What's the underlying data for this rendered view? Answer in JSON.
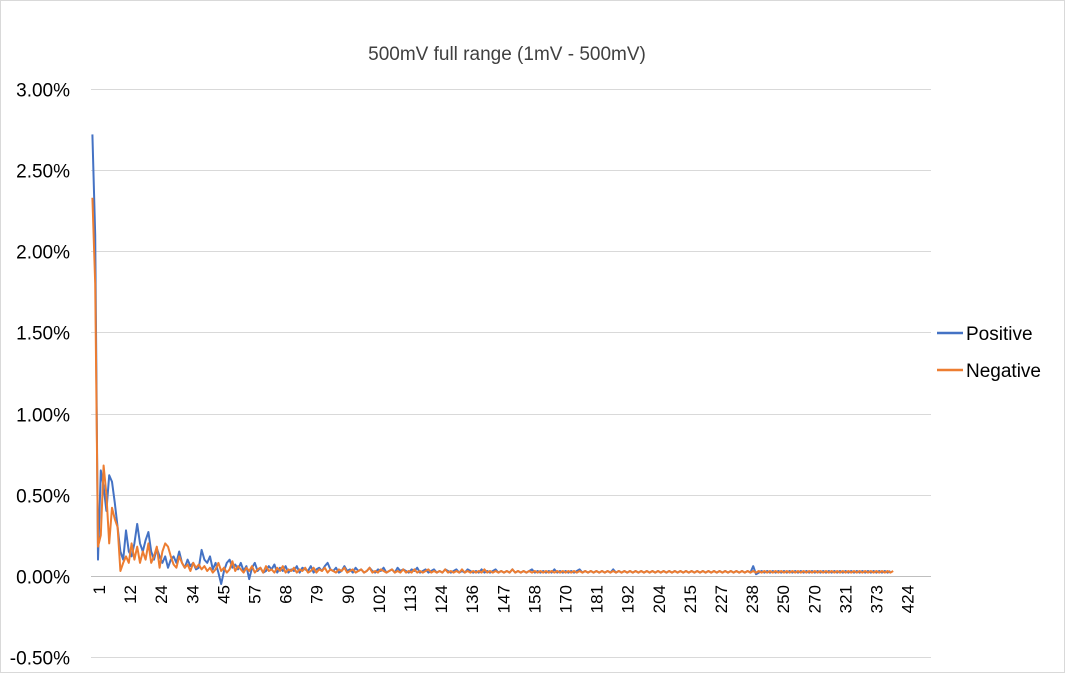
{
  "chart_data": {
    "type": "line",
    "title": "500mV full range (1mV - 500mV)",
    "xlabel": "",
    "ylabel": "",
    "ylim": [
      -0.005,
      0.03
    ],
    "y_ticks": [
      "-0.50%",
      "0.00%",
      "0.50%",
      "1.00%",
      "1.50%",
      "2.00%",
      "2.50%",
      "3.00%"
    ],
    "y_tick_values": [
      -0.005,
      0,
      0.005,
      0.01,
      0.015,
      0.02,
      0.025,
      0.03
    ],
    "x_tick_labels": [
      "1",
      "12",
      "24",
      "34",
      "45",
      "57",
      "68",
      "79",
      "90",
      "102",
      "113",
      "124",
      "136",
      "147",
      "158",
      "170",
      "181",
      "192",
      "204",
      "215",
      "227",
      "238",
      "250",
      "270",
      "321",
      "373",
      "424"
    ],
    "point_count": 300,
    "grid": true,
    "legend_position": "right",
    "series": [
      {
        "name": "Positive",
        "color": "#4472C4",
        "values": [
          0.0272,
          0.021,
          0.001,
          0.0065,
          0.0055,
          0.004,
          0.0062,
          0.0058,
          0.0045,
          0.003,
          0.0015,
          0.001,
          0.0028,
          0.0015,
          0.0012,
          0.002,
          0.0032,
          0.002,
          0.0015,
          0.0022,
          0.0027,
          0.0015,
          0.001,
          0.0017,
          0.0012,
          0.0008,
          0.0012,
          0.0005,
          0.001,
          0.0012,
          0.0008,
          0.0015,
          0.0008,
          0.0005,
          0.001,
          0.0006,
          0.0008,
          0.0004,
          0.0005,
          0.0016,
          0.001,
          0.0008,
          0.0012,
          0.0004,
          0.0008,
          0.0002,
          -0.0005,
          0.0003,
          0.0008,
          0.001,
          0.0005,
          0.0007,
          0.0004,
          0.0008,
          0.0003,
          0.0006,
          -0.0002,
          0.0005,
          0.0008,
          0.0003,
          0.0005,
          0.0002,
          0.0003,
          0.0006,
          0.0004,
          0.0007,
          0.0002,
          0.0005,
          0.0003,
          0.0006,
          0.0002,
          0.0004,
          0.0003,
          0.0006,
          0.0002,
          0.0005,
          0.0004,
          0.0003,
          0.0006,
          0.0002,
          0.0004,
          0.0005,
          0.0003,
          0.0006,
          0.0008,
          0.0004,
          0.0003,
          0.0005,
          0.0002,
          0.0003,
          0.0006,
          0.0003,
          0.0004,
          0.0002,
          0.0005,
          0.0003,
          0.0004,
          0.0002,
          0.0003,
          0.0005,
          0.0003,
          0.0002,
          0.0004,
          0.0003,
          0.0005,
          0.0002,
          0.0003,
          0.0004,
          0.0002,
          0.0005,
          0.0003,
          0.0004,
          0.0003,
          0.0002,
          0.0004,
          0.0003,
          0.0005,
          0.0002,
          0.0003,
          0.0004,
          0.0002,
          0.0003,
          0.0004,
          0.0002,
          0.0003,
          0.0002,
          0.0004,
          0.0003,
          0.0002,
          0.0003,
          0.0004,
          0.0002,
          0.0003,
          0.0002,
          0.0004,
          0.0003,
          0.0002,
          0.0003,
          0.0002,
          0.0004,
          0.0002,
          0.0003,
          0.0002,
          0.0003,
          0.0004,
          0.0002,
          0.0003,
          0.0002,
          0.0003,
          0.0002,
          0.0004,
          0.0002,
          0.0003,
          0.0002,
          0.0003,
          0.0002,
          0.0003,
          0.0004,
          0.0002,
          0.0003,
          0.0002,
          0.0003,
          0.0002,
          0.0003,
          0.0002,
          0.0004,
          0.0002,
          0.0003,
          0.0002,
          0.0003,
          0.0002,
          0.0003,
          0.0002,
          0.0003,
          0.0004,
          0.0002,
          0.0003,
          0.0002,
          0.0003,
          0.0002,
          0.0003,
          0.0002,
          0.0003,
          0.0002,
          0.0003,
          0.0002,
          0.0004,
          0.0002,
          0.0003,
          0.0002,
          0.0003,
          0.0002,
          0.0003,
          0.0002,
          0.0003,
          0.0002,
          0.0003,
          0.0002,
          0.0003,
          0.0002,
          0.0003,
          0.0002,
          0.0003,
          0.0002,
          0.0003,
          0.0002,
          0.0003,
          0.0002,
          0.0003,
          0.0002,
          0.0003,
          0.0002,
          0.0003,
          0.0002,
          0.0003,
          0.0002,
          0.0003,
          0.0002,
          0.0003,
          0.0002,
          0.0003,
          0.0002,
          0.0003,
          0.0002,
          0.0003,
          0.0002,
          0.0003,
          0.0002,
          0.0003,
          0.0002,
          0.0003,
          0.0002,
          0.0003,
          0.0002,
          0.0003,
          0.0002,
          0.0006,
          0.0001,
          0.0002,
          0.0003,
          0.0002,
          0.0003,
          0.0002,
          0.0003,
          0.0002,
          0.0003,
          0.0002,
          0.0003,
          0.0002,
          0.0003,
          0.0002,
          0.0003,
          0.0002,
          0.0003,
          0.0002,
          0.0003,
          0.0002,
          0.0003,
          0.0002,
          0.0003,
          0.0002,
          0.0003,
          0.0002,
          0.0003,
          0.0002,
          0.0003,
          0.0002,
          0.0003,
          0.0002,
          0.0003,
          0.0002,
          0.0003,
          0.0002,
          0.0003,
          0.0002,
          0.0003,
          0.0002,
          0.0003,
          0.0002,
          0.0003,
          0.0002,
          0.0003,
          0.0002,
          0.0003,
          0.0002,
          0.0003
        ]
      },
      {
        "name": "Negative",
        "color": "#ED7D31",
        "values": [
          0.0233,
          0.018,
          0.0018,
          0.0025,
          0.0068,
          0.005,
          0.002,
          0.0042,
          0.0035,
          0.003,
          0.0003,
          0.0008,
          0.0012,
          0.0008,
          0.002,
          0.001,
          0.0018,
          0.0008,
          0.0015,
          0.001,
          0.002,
          0.0008,
          0.0012,
          0.0018,
          0.0005,
          0.0015,
          0.002,
          0.0018,
          0.0012,
          0.0007,
          0.0005,
          0.0012,
          0.0008,
          0.0005,
          0.0007,
          0.0003,
          0.0008,
          0.0005,
          0.0007,
          0.0004,
          0.0006,
          0.0003,
          0.0005,
          0.0002,
          0.0004,
          0.0008,
          0.0003,
          0.0005,
          0.0002,
          0.0004,
          0.0009,
          0.0003,
          0.0006,
          0.0004,
          0.0002,
          0.0005,
          0.0003,
          0.0006,
          0.0002,
          0.0004,
          0.0005,
          0.0002,
          0.0006,
          0.0003,
          0.0004,
          0.0002,
          0.0005,
          0.0003,
          0.0006,
          0.0002,
          0.0004,
          0.0003,
          0.0005,
          0.0002,
          0.0004,
          0.0003,
          0.0005,
          0.0002,
          0.0003,
          0.0005,
          0.0002,
          0.0004,
          0.0003,
          0.0005,
          0.0002,
          0.0004,
          0.0003,
          0.0002,
          0.0004,
          0.0003,
          0.0005,
          0.0002,
          0.0003,
          0.0004,
          0.0002,
          0.0003,
          0.0004,
          0.0002,
          0.0003,
          0.0005,
          0.0002,
          0.0003,
          0.0002,
          0.0004,
          0.0003,
          0.0002,
          0.0003,
          0.0004,
          0.0002,
          0.0003,
          0.0002,
          0.0004,
          0.0002,
          0.0003,
          0.0002,
          0.0004,
          0.0002,
          0.0003,
          0.0002,
          0.0003,
          0.0004,
          0.0002,
          0.0003,
          0.0002,
          0.0003,
          0.0002,
          0.0004,
          0.0002,
          0.0003,
          0.0002,
          0.0003,
          0.0002,
          0.0004,
          0.0002,
          0.0003,
          0.0002,
          0.0003,
          0.0002,
          0.0003,
          0.0002,
          0.0004,
          0.0002,
          0.0003,
          0.0002,
          0.0003,
          0.0002,
          0.0003,
          0.0002,
          0.0003,
          0.0002,
          0.0004,
          0.0002,
          0.0003,
          0.0002,
          0.0003,
          0.0002,
          0.0003,
          0.0002,
          0.0003,
          0.0002,
          0.0003,
          0.0002,
          0.0003,
          0.0002,
          0.0003,
          0.0002,
          0.0003,
          0.0002,
          0.0003,
          0.0002,
          0.0003,
          0.0002,
          0.0003,
          0.0002,
          0.0003,
          0.0002,
          0.0003,
          0.0002,
          0.0003,
          0.0002,
          0.0003,
          0.0002,
          0.0003,
          0.0002,
          0.0003,
          0.0002,
          0.0003,
          0.0002,
          0.0003,
          0.0002,
          0.0003,
          0.0002,
          0.0003,
          0.0002,
          0.0003,
          0.0002,
          0.0003,
          0.0002,
          0.0003,
          0.0002,
          0.0003,
          0.0002,
          0.0003,
          0.0002,
          0.0003,
          0.0002,
          0.0003,
          0.0002,
          0.0003,
          0.0002,
          0.0003,
          0.0002,
          0.0003,
          0.0002,
          0.0003,
          0.0002,
          0.0003,
          0.0002,
          0.0003,
          0.0002,
          0.0003,
          0.0002,
          0.0003,
          0.0002,
          0.0003,
          0.0002,
          0.0003,
          0.0002,
          0.0003,
          0.0002,
          0.0003,
          0.0002,
          0.0003,
          0.0002,
          0.0003,
          0.0002,
          0.0003,
          0.0002,
          0.0003,
          0.0002,
          0.0003,
          0.0002,
          0.0003,
          0.0002,
          0.0003,
          0.0002,
          0.0003,
          0.0002,
          0.0003,
          0.0002,
          0.0003,
          0.0002,
          0.0003,
          0.0002,
          0.0003,
          0.0002,
          0.0003,
          0.0002,
          0.0003,
          0.0002,
          0.0003,
          0.0002,
          0.0003,
          0.0002,
          0.0003,
          0.0002,
          0.0003,
          0.0002,
          0.0003,
          0.0002,
          0.0003,
          0.0002,
          0.0003,
          0.0002,
          0.0003,
          0.0002,
          0.0003,
          0.0002,
          0.0003,
          0.0002,
          0.0003,
          0.0002,
          0.0003,
          0.0002,
          0.0003,
          0.0002,
          0.0003
        ]
      }
    ]
  }
}
